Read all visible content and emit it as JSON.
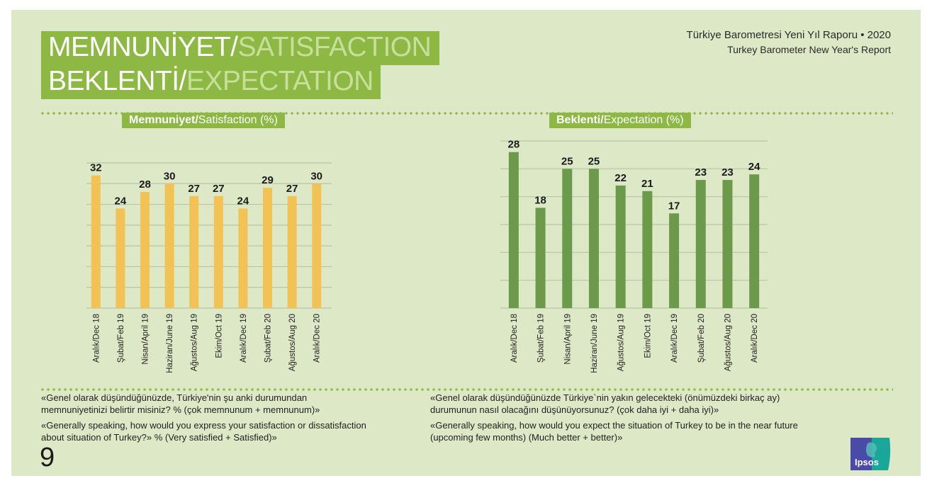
{
  "header": {
    "title_line1_tr": "MEMNUNİYET/",
    "title_line1_en": "SATISFACTION",
    "title_line2_tr": "BEKLENTİ/",
    "title_line2_en": "EXPECTATION",
    "report_tr": "Türkiye Barometresi Yeni Yıl Raporu • 2020",
    "report_en": "Turkey Barometer New Year's Report"
  },
  "footer": {
    "page_number": "9",
    "logo_text": "Ipsos",
    "logo_colors": {
      "left": "#4a4aa8",
      "right": "#1aa79a"
    }
  },
  "colors": {
    "background": "#dde8c6",
    "accent_green": "#8cb843",
    "satisfaction_bar": "#f2c354",
    "expectation_bar": "#6a9a4a",
    "gridline": "#b9c4a6"
  },
  "chart_data": [
    {
      "type": "bar",
      "title_bold": "Memnuniyet/",
      "title_rest": "Satisfaction (%)",
      "xlabel": "",
      "ylabel": "",
      "ylim": [
        0,
        35
      ],
      "grid": true,
      "gridline_step": 5,
      "categories": [
        "Aralık/Dec 18",
        "Şubat/Feb 19",
        "Nisan/April 19",
        "Haziran/June 19",
        "Ağustos/Aug 19",
        "Ekim/Oct 19",
        "Aralık/Dec 19",
        "Şubat/Feb 20",
        "Ağustos/Aug 20",
        "Aralık/Dec 20"
      ],
      "values": [
        32,
        24,
        28,
        30,
        27,
        27,
        24,
        29,
        27,
        30
      ],
      "data_labels": [
        "32",
        "24",
        "28",
        "30",
        "27",
        "27",
        "24",
        "29",
        "27",
        "30"
      ],
      "question_tr": "«Genel olarak düşündüğünüzde, Türkiye'nin şu anki durumundan memnuniyetinizi belirtir misiniz?  % (çok memnunum + memnunum)»",
      "question_en": "«Generally speaking, how would you express your satisfaction or dissatisfaction about  situation of Turkey?» % (Very satisfied + Satisfied)»"
    },
    {
      "type": "bar",
      "title_bold": "Beklenti/",
      "title_rest": "Expectation (%)",
      "xlabel": "",
      "ylabel": "",
      "ylim": [
        0,
        30
      ],
      "grid": true,
      "gridline_step": 5,
      "categories": [
        "Aralık/Dec 18",
        "Şubat/Feb 19",
        "Nisan/April 19",
        "Haziran/June 19",
        "Ağustos/Aug 19",
        "Ekim/Oct 19",
        "Aralık/Dec 19",
        "Şubat/Feb 20",
        "Ağustos/Aug 20",
        "Aralık/Dec 20"
      ],
      "values": [
        28,
        18,
        25,
        25,
        22,
        21,
        17,
        23,
        23,
        24
      ],
      "data_labels": [
        "28",
        "18",
        "25",
        "25",
        "22",
        "21",
        "17",
        "23",
        "23",
        "24"
      ],
      "question_tr": "«Genel olarak düşündüğünüzde Türkiye`nin yakın gelecekteki (önümüzdeki birkaç ay) durumunun nasıl olacağını düşünüyorsunuz? (çok daha iyi + daha iyi)»",
      "question_en": "«Generally speaking, how would you expect the situation of Turkey to be in the near future (upcoming few months) (Much better + better)»"
    }
  ]
}
